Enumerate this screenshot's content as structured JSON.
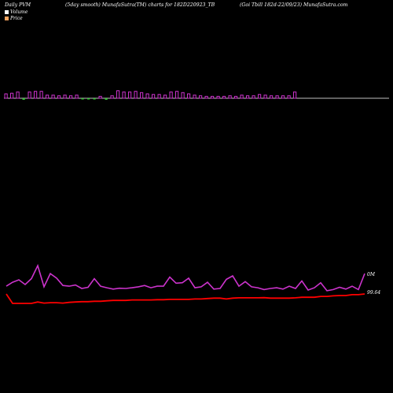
{
  "header": {
    "left": "Daily PVM",
    "middle": "(5day smooth) MunafaSutra(TM) charts for 182D220923_TB",
    "right": "(Goi  Tbill 182d-22/09/23) MunafaSutra.com"
  },
  "legend": [
    {
      "label": "Volume",
      "color": "#ffffff"
    },
    {
      "label": "Price",
      "color": "#f4a460"
    }
  ],
  "colors": {
    "volume_up": "#cc33cc",
    "volume_down": "#33cc33",
    "smooth_line": "#cc33cc",
    "price_line": "#ff0000",
    "axis": "#ffffff",
    "background": "#000000"
  },
  "chart_data": {
    "type": "line",
    "title": "(5day smooth) MunafaSutra(TM) charts for 182D220923_TB",
    "ylabels": [
      "0M",
      "99.64"
    ],
    "volume_bars": {
      "up": [
        1,
        1,
        1,
        0,
        1,
        1,
        1,
        1,
        1,
        1,
        1,
        1,
        1,
        0,
        0,
        0,
        1,
        0,
        1,
        1,
        1,
        1,
        1,
        1,
        1,
        1,
        1,
        1,
        1,
        1,
        1,
        1,
        1,
        1,
        1,
        1,
        1,
        1,
        1,
        1,
        1,
        1,
        1,
        1,
        1,
        1,
        1,
        1,
        1,
        1
      ],
      "magnitude": [
        0.7,
        0.8,
        1.0,
        0.4,
        1.0,
        1.1,
        1.1,
        0.5,
        0.5,
        0.4,
        0.5,
        0.4,
        0.5,
        0.3,
        0.3,
        0.3,
        0.3,
        0.4,
        0.4,
        1.2,
        1.0,
        1.0,
        1.1,
        0.9,
        0.7,
        0.6,
        0.6,
        0.5,
        1.0,
        1.1,
        0.9,
        0.7,
        0.5,
        0.4,
        0.3,
        0.3,
        0.3,
        0.3,
        0.4,
        0.3,
        0.5,
        0.4,
        0.4,
        0.6,
        0.5,
        0.4,
        0.4,
        0.4,
        0.4,
        1.0
      ]
    },
    "smooth_volume": [
      0.55,
      0.72,
      0.83,
      0.62,
      0.88,
      1.45,
      0.52,
      1.1,
      0.9,
      0.58,
      0.55,
      0.6,
      0.45,
      0.5,
      0.88,
      0.55,
      0.48,
      0.42,
      0.46,
      0.45,
      0.48,
      0.52,
      0.58,
      0.48,
      0.55,
      0.55,
      0.95,
      0.68,
      0.7,
      0.9,
      0.48,
      0.52,
      0.72,
      0.42,
      0.45,
      0.85,
      1.0,
      0.55,
      0.75,
      0.52,
      0.48,
      0.4,
      0.45,
      0.48,
      0.42,
      0.55,
      0.45,
      0.78,
      0.38,
      0.48,
      0.7,
      0.35,
      0.4,
      0.5,
      0.42,
      0.55,
      0.4,
      1.1
    ],
    "price": [
      99.64,
      99.1,
      99.1,
      99.1,
      99.1,
      99.18,
      99.12,
      99.14,
      99.14,
      99.12,
      99.16,
      99.18,
      99.2,
      99.2,
      99.22,
      99.22,
      99.25,
      99.27,
      99.27,
      99.27,
      99.3,
      99.3,
      99.3,
      99.3,
      99.31,
      99.31,
      99.33,
      99.33,
      99.33,
      99.33,
      99.35,
      99.35,
      99.38,
      99.4,
      99.4,
      99.35,
      99.4,
      99.42,
      99.42,
      99.42,
      99.42,
      99.43,
      99.4,
      99.4,
      99.4,
      99.4,
      99.42,
      99.45,
      99.45,
      99.45,
      99.5,
      99.5,
      99.53,
      99.55,
      99.55,
      99.6,
      99.6,
      99.64
    ]
  }
}
